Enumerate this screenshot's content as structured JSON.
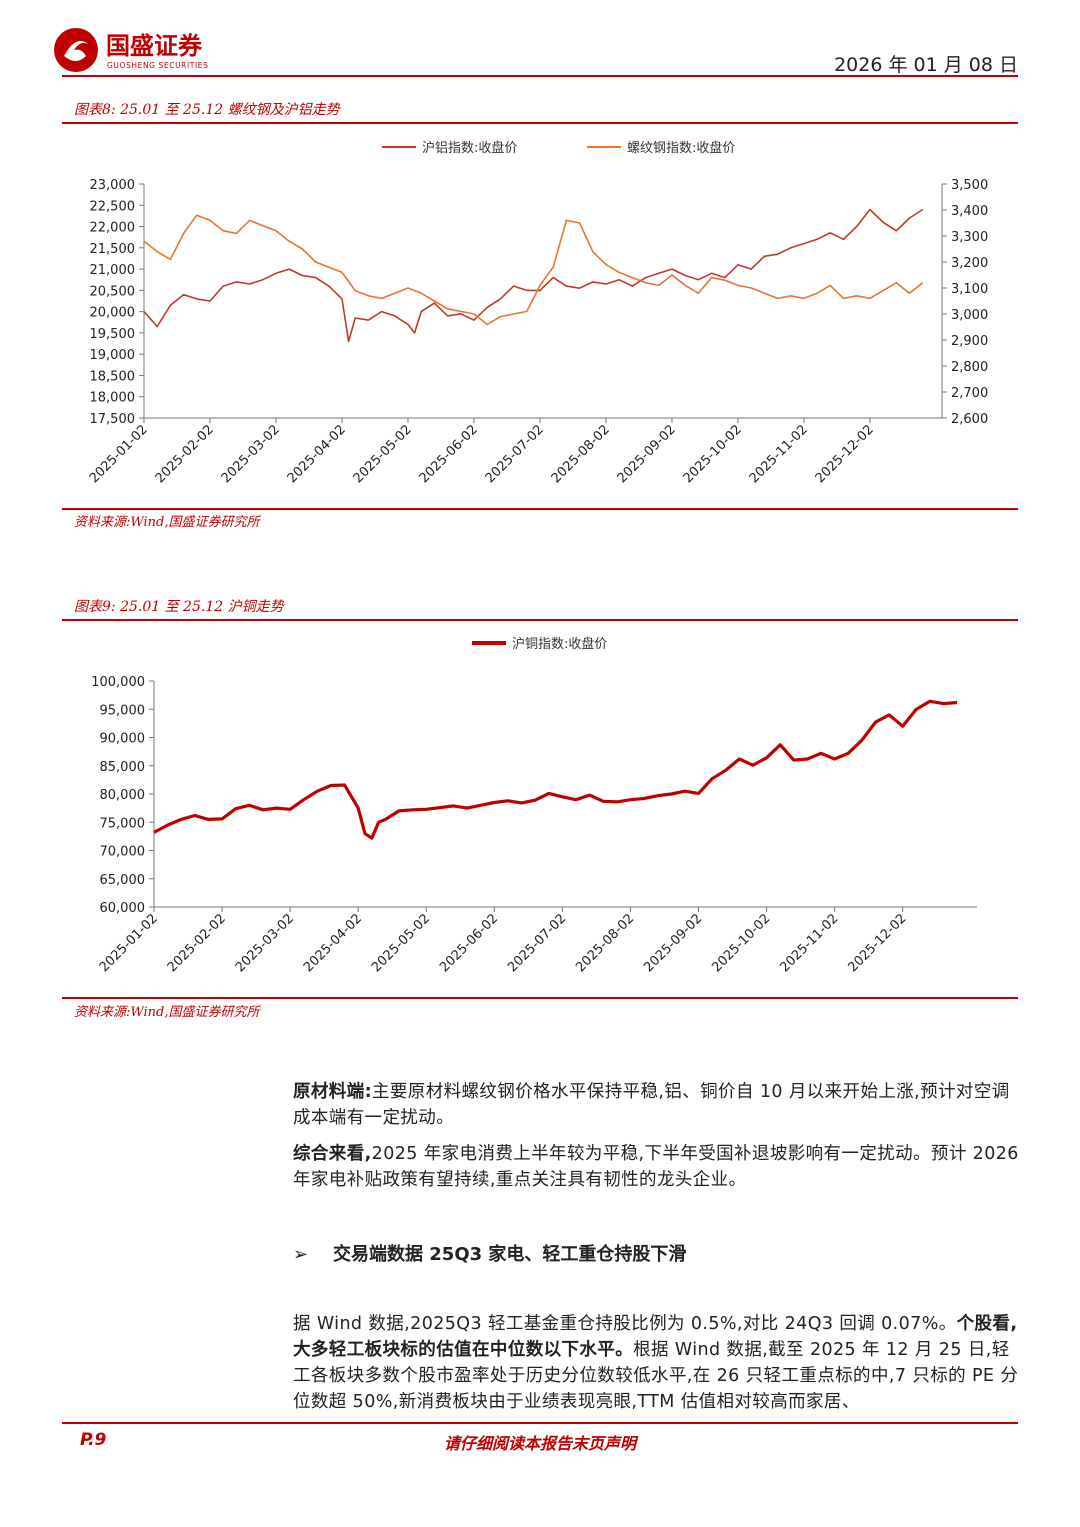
{
  "header": {
    "brand_cn": "国盛证券",
    "brand_en": "GUOSHENG SECURITIES",
    "date": "2026 年 01 月 08 日",
    "brand_color": "#c00000"
  },
  "chart8": {
    "title": "图表8:  25.01 至 25.12 螺纹钢及沪铝走势",
    "source": "资料来源:Wind,国盛证券研究所"
  },
  "chart9": {
    "title": "图表9:  25.01 至 25.12 沪铜走势",
    "source": "资料来源:Wind,国盛证券研究所"
  },
  "chart_data": [
    {
      "type": "line",
      "title": "",
      "legend_position": "top",
      "categories": [
        "2025-01-02",
        "2025-02-02",
        "2025-03-02",
        "2025-04-02",
        "2025-05-02",
        "2025-06-02",
        "2025-07-02",
        "2025-08-02",
        "2025-09-02",
        "2025-10-02",
        "2025-11-02",
        "2025-12-02"
      ],
      "ylim": [
        17500,
        23000
      ],
      "y_ticks": [
        "23,000",
        "22,500",
        "22,000",
        "21,500",
        "21,000",
        "20,500",
        "20,000",
        "19,500",
        "19,000",
        "18,500",
        "18,000",
        "17,500"
      ],
      "y2lim": [
        2600,
        3500
      ],
      "y2_ticks": [
        "3,500",
        "3,400",
        "3,300",
        "3,200",
        "3,100",
        "3,000",
        "2,900",
        "2,800",
        "2,700",
        "2,600"
      ],
      "series": [
        {
          "name": "沪铝指数:收盘价",
          "axis": "left",
          "color": "#c0392b",
          "x": [
            0,
            0.2,
            0.4,
            0.6,
            0.8,
            1,
            1.2,
            1.4,
            1.6,
            1.8,
            2,
            2.2,
            2.4,
            2.6,
            2.8,
            3,
            3.1,
            3.2,
            3.4,
            3.6,
            3.8,
            4,
            4.1,
            4.2,
            4.4,
            4.6,
            4.8,
            5,
            5.2,
            5.4,
            5.6,
            5.8,
            6,
            6.2,
            6.4,
            6.6,
            6.8,
            7,
            7.2,
            7.4,
            7.6,
            7.8,
            8,
            8.2,
            8.4,
            8.6,
            8.8,
            9,
            9.2,
            9.4,
            9.6,
            9.8,
            10,
            10.2,
            10.4,
            10.6,
            10.8,
            11,
            11.2,
            11.4,
            11.6,
            11.8
          ],
          "values": [
            20000,
            19650,
            20150,
            20400,
            20300,
            20250,
            20600,
            20700,
            20650,
            20750,
            20900,
            21000,
            20850,
            20800,
            20600,
            20300,
            19300,
            19850,
            19800,
            20000,
            19900,
            19700,
            19500,
            20000,
            20200,
            19900,
            19950,
            19800,
            20100,
            20300,
            20600,
            20500,
            20500,
            20800,
            20600,
            20550,
            20700,
            20650,
            20750,
            20600,
            20800,
            20900,
            21000,
            20850,
            20750,
            20900,
            20800,
            21100,
            21000,
            21300,
            21350,
            21500,
            21600,
            21700,
            21850,
            21700,
            22000,
            22400,
            22100,
            21900,
            22200,
            22400
          ]
        },
        {
          "name": "螺纹钢指数:收盘价",
          "axis": "right",
          "color": "#e8742f",
          "x": [
            0,
            0.2,
            0.4,
            0.6,
            0.8,
            1,
            1.2,
            1.4,
            1.6,
            1.8,
            2,
            2.2,
            2.4,
            2.6,
            2.8,
            3,
            3.2,
            3.4,
            3.6,
            3.8,
            4,
            4.2,
            4.4,
            4.6,
            4.8,
            5,
            5.2,
            5.4,
            5.6,
            5.8,
            6,
            6.2,
            6.4,
            6.6,
            6.8,
            7,
            7.2,
            7.4,
            7.6,
            7.8,
            8,
            8.2,
            8.4,
            8.6,
            8.8,
            9,
            9.2,
            9.4,
            9.6,
            9.8,
            10,
            10.2,
            10.4,
            10.6,
            10.8,
            11,
            11.2,
            11.4,
            11.6,
            11.8
          ],
          "values": [
            3280,
            3240,
            3210,
            3310,
            3380,
            3360,
            3320,
            3310,
            3360,
            3340,
            3320,
            3280,
            3250,
            3200,
            3180,
            3160,
            3090,
            3070,
            3060,
            3080,
            3100,
            3080,
            3050,
            3020,
            3010,
            3000,
            2960,
            2990,
            3000,
            3010,
            3110,
            3180,
            3360,
            3350,
            3240,
            3190,
            3160,
            3140,
            3120,
            3110,
            3150,
            3110,
            3080,
            3140,
            3130,
            3110,
            3100,
            3080,
            3060,
            3070,
            3060,
            3080,
            3110,
            3060,
            3070,
            3060,
            3090,
            3120,
            3080,
            3120
          ]
        }
      ]
    },
    {
      "type": "line",
      "title": "",
      "legend_position": "top",
      "categories": [
        "2025-01-02",
        "2025-02-02",
        "2025-03-02",
        "2025-04-02",
        "2025-05-02",
        "2025-06-02",
        "2025-07-02",
        "2025-08-02",
        "2025-09-02",
        "2025-10-02",
        "2025-11-02",
        "2025-12-02"
      ],
      "ylim": [
        60000,
        100000
      ],
      "y_ticks": [
        "100,000",
        "95,000",
        "90,000",
        "85,000",
        "80,000",
        "75,000",
        "70,000",
        "65,000",
        "60,000"
      ],
      "series": [
        {
          "name": "沪铜指数:收盘价",
          "axis": "left",
          "color": "#c00000",
          "x": [
            0,
            0.2,
            0.4,
            0.6,
            0.8,
            1,
            1.2,
            1.4,
            1.6,
            1.8,
            2,
            2.2,
            2.4,
            2.6,
            2.8,
            3,
            3.1,
            3.2,
            3.3,
            3.4,
            3.6,
            3.8,
            4,
            4.2,
            4.4,
            4.6,
            4.8,
            5,
            5.2,
            5.4,
            5.6,
            5.8,
            6,
            6.2,
            6.4,
            6.6,
            6.8,
            7,
            7.2,
            7.4,
            7.6,
            7.8,
            8,
            8.2,
            8.4,
            8.6,
            8.8,
            9,
            9.2,
            9.4,
            9.6,
            9.8,
            10,
            10.2,
            10.4,
            10.6,
            10.8,
            11,
            11.2,
            11.4,
            11.6,
            11.8
          ],
          "values": [
            73200,
            74500,
            75500,
            76200,
            75500,
            75600,
            77400,
            78000,
            77200,
            77500,
            77300,
            79000,
            80500,
            81500,
            81600,
            77500,
            73000,
            72200,
            75000,
            75500,
            77000,
            77200,
            77300,
            77600,
            77900,
            77500,
            78000,
            78500,
            78800,
            78400,
            78900,
            80100,
            79500,
            79000,
            79800,
            78700,
            78600,
            79000,
            79200,
            79700,
            80000,
            80500,
            80100,
            82700,
            84200,
            86200,
            85100,
            86400,
            88700,
            86000,
            86200,
            87200,
            86200,
            87200,
            89500,
            92700,
            94000,
            92000,
            95000,
            96400,
            96000,
            96200
          ]
        }
      ]
    }
  ],
  "body": {
    "p1_bold": "原材料端:",
    "p1_text": "主要原材料螺纹钢价格水平保持平稳,铝、铜价自 10 月以来开始上涨,预计对空调成本端有一定扰动。",
    "p2_bold": "综合来看,",
    "p2_text": "2025 年家电消费上半年较为平稳,下半年受国补退坡影响有一定扰动。预计 2026 年家电补贴政策有望持续,重点关注具有韧性的龙头企业。",
    "bullet_arrow": "➢",
    "bullet_heading": "交易端数据 25Q3 家电、轻工重仓持股下滑",
    "p3_text_a": "据 Wind 数据,2025Q3 轻工基金重仓持股比例为 0.5%,对比 24Q3 回调 0.07%。",
    "p3_bold": "个股看,大多轻工板块标的估值在中位数以下水平。",
    "p3_text_b": "根据 Wind 数据,截至 2025 年 12 月 25 日,轻工各板块多数个股市盈率处于历史分位数较低水平,在 26 只轻工重点标的中,7 只标的 PE 分位数超 50%,新消费板块由于业绩表现亮眼,TTM 估值相对较高而家居、"
  },
  "footer": {
    "page": "P.9",
    "note": "请仔细阅读本报告末页声明"
  }
}
